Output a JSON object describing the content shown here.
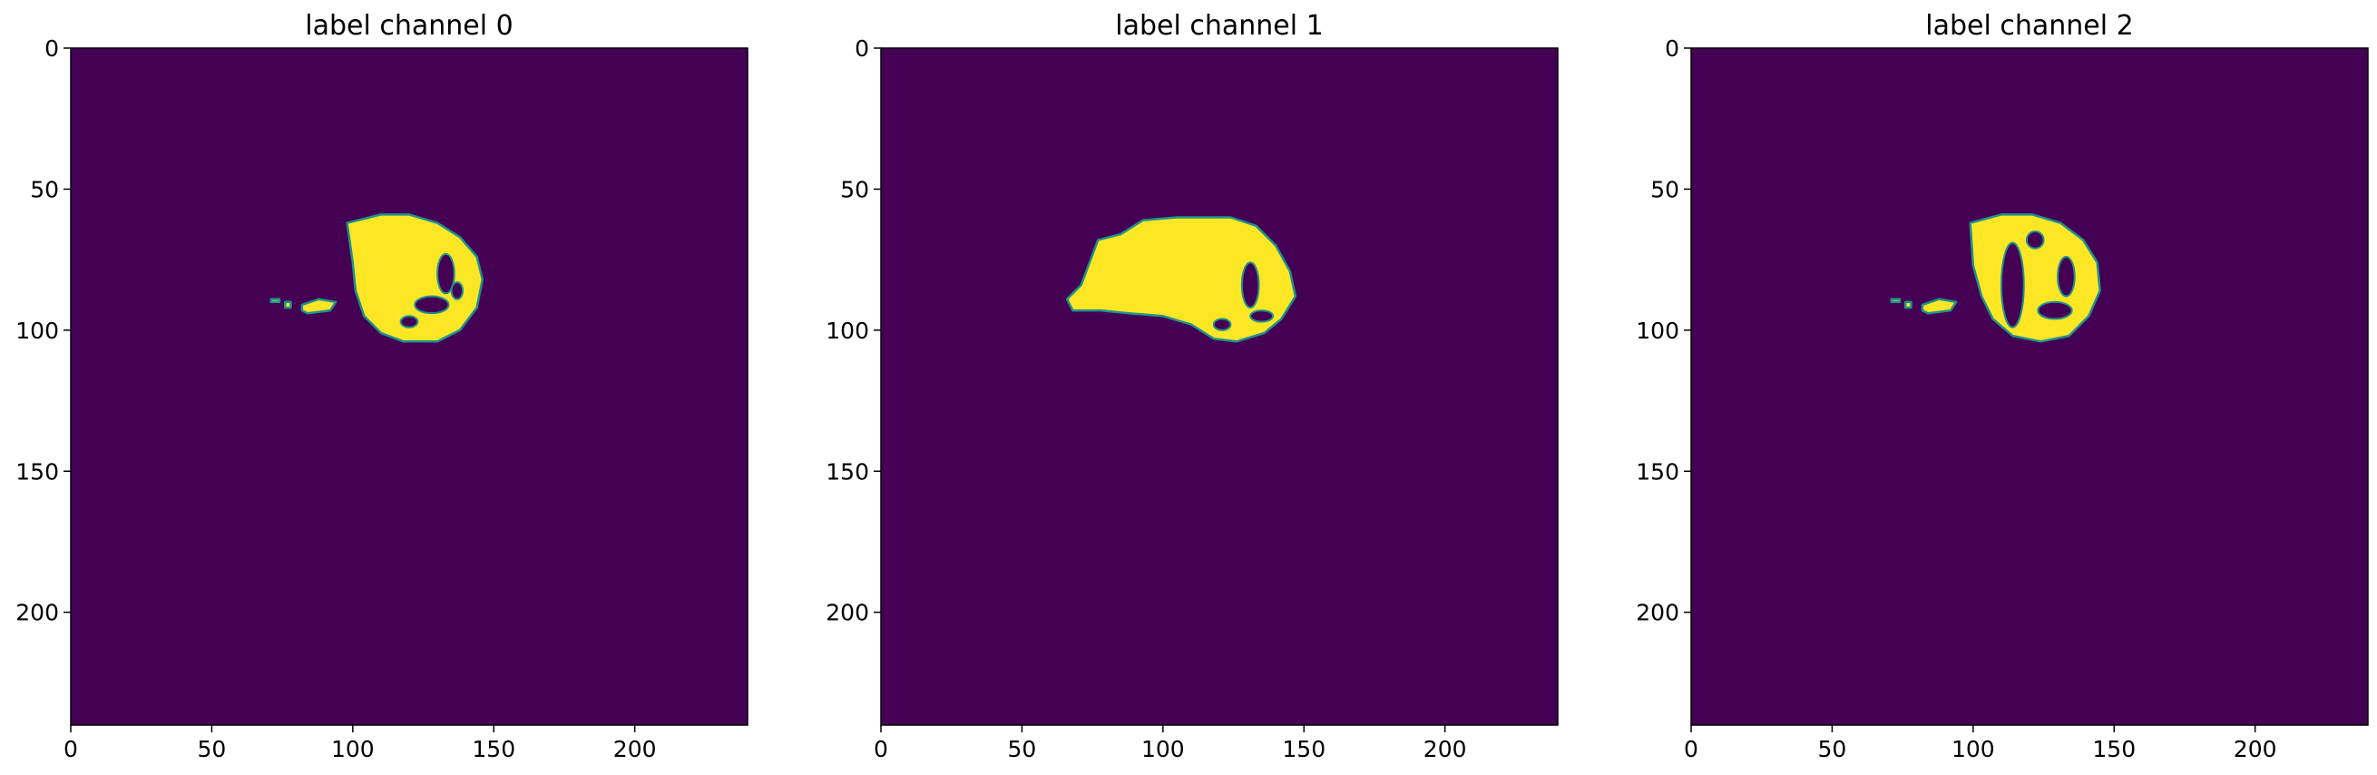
{
  "chart_data": [
    {
      "type": "heatmap",
      "title": "label channel 0",
      "xlim": [
        0,
        240
      ],
      "ylim": [
        240,
        0
      ],
      "xticks": [
        0,
        50,
        100,
        150,
        200
      ],
      "yticks": [
        0,
        50,
        100,
        150,
        200
      ],
      "colors": {
        "background": "#440154",
        "label": "#fde725",
        "edge": "#21918c"
      },
      "regions": [
        {
          "name": "main-blob",
          "points": [
            [
              98,
              62
            ],
            [
              110,
              59
            ],
            [
              120,
              59
            ],
            [
              130,
              62
            ],
            [
              138,
              67
            ],
            [
              144,
              74
            ],
            [
              146,
              82
            ],
            [
              144,
              92
            ],
            [
              138,
              100
            ],
            [
              130,
              104
            ],
            [
              118,
              104
            ],
            [
              110,
              101
            ],
            [
              104,
              95
            ],
            [
              101,
              86
            ],
            [
              100,
              76
            ]
          ],
          "holes": [
            {
              "cx": 133,
              "cy": 80,
              "rx": 3,
              "ry": 7
            },
            {
              "cx": 128,
              "cy": 91,
              "rx": 6,
              "ry": 3
            },
            {
              "cx": 137,
              "cy": 86,
              "rx": 2,
              "ry": 3
            },
            {
              "cx": 120,
              "cy": 97,
              "rx": 3,
              "ry": 2
            }
          ]
        },
        {
          "name": "small-blob",
          "points": [
            [
              82,
              91
            ],
            [
              88,
              89
            ],
            [
              94,
              90
            ],
            [
              92,
              93
            ],
            [
              84,
              94
            ],
            [
              82,
              93
            ]
          ]
        },
        {
          "name": "speck-1",
          "points": [
            [
              71,
              89
            ],
            [
              74,
              89
            ],
            [
              74,
              90
            ],
            [
              71,
              90
            ]
          ]
        },
        {
          "name": "speck-2",
          "points": [
            [
              76,
              90
            ],
            [
              78,
              90
            ],
            [
              78,
              92
            ],
            [
              76,
              92
            ]
          ]
        }
      ]
    },
    {
      "type": "heatmap",
      "title": "label channel 1",
      "xlim": [
        0,
        240
      ],
      "ylim": [
        240,
        0
      ],
      "xticks": [
        0,
        50,
        100,
        150,
        200
      ],
      "yticks": [
        0,
        50,
        100,
        150,
        200
      ],
      "colors": {
        "background": "#440154",
        "label": "#fde725",
        "edge": "#21918c"
      },
      "regions": [
        {
          "name": "main-blob",
          "points": [
            [
              77,
              68
            ],
            [
              85,
              66
            ],
            [
              93,
              61
            ],
            [
              105,
              60
            ],
            [
              116,
              60
            ],
            [
              124,
              60
            ],
            [
              133,
              63
            ],
            [
              140,
              70
            ],
            [
              145,
              79
            ],
            [
              147,
              88
            ],
            [
              142,
              96
            ],
            [
              136,
              101
            ],
            [
              126,
              104
            ],
            [
              118,
              103
            ],
            [
              110,
              98
            ],
            [
              100,
              95
            ],
            [
              88,
              94
            ],
            [
              78,
              93
            ],
            [
              68,
              93
            ],
            [
              66,
              89
            ],
            [
              71,
              84
            ],
            [
              74,
              76
            ]
          ],
          "holes": [
            {
              "cx": 131,
              "cy": 84,
              "rx": 3,
              "ry": 8
            },
            {
              "cx": 135,
              "cy": 95,
              "rx": 4,
              "ry": 2
            },
            {
              "cx": 121,
              "cy": 98,
              "rx": 3,
              "ry": 2
            }
          ]
        }
      ]
    },
    {
      "type": "heatmap",
      "title": "label channel 2",
      "xlim": [
        0,
        240
      ],
      "ylim": [
        240,
        0
      ],
      "xticks": [
        0,
        50,
        100,
        150,
        200
      ],
      "yticks": [
        0,
        50,
        100,
        150,
        200
      ],
      "colors": {
        "background": "#440154",
        "label": "#fde725",
        "edge": "#21918c"
      },
      "regions": [
        {
          "name": "ring-blob",
          "points": [
            [
              99,
              62
            ],
            [
              110,
              59
            ],
            [
              121,
              59
            ],
            [
              131,
              62
            ],
            [
              139,
              68
            ],
            [
              144,
              76
            ],
            [
              145,
              86
            ],
            [
              141,
              95
            ],
            [
              134,
              102
            ],
            [
              124,
              104
            ],
            [
              114,
              102
            ],
            [
              107,
              96
            ],
            [
              103,
              88
            ],
            [
              100,
              77
            ]
          ],
          "holes": [
            {
              "cx": 114,
              "cy": 84,
              "rx": 4,
              "ry": 15
            },
            {
              "cx": 133,
              "cy": 81,
              "rx": 3,
              "ry": 7
            },
            {
              "cx": 129,
              "cy": 93,
              "rx": 6,
              "ry": 3
            },
            {
              "cx": 122,
              "cy": 68,
              "rx": 3,
              "ry": 3
            }
          ]
        },
        {
          "name": "small-blob",
          "points": [
            [
              82,
              91
            ],
            [
              88,
              89
            ],
            [
              94,
              90
            ],
            [
              92,
              93
            ],
            [
              84,
              94
            ],
            [
              82,
              93
            ]
          ]
        },
        {
          "name": "speck-1",
          "points": [
            [
              71,
              89
            ],
            [
              74,
              89
            ],
            [
              74,
              90
            ],
            [
              71,
              90
            ]
          ]
        },
        {
          "name": "speck-2",
          "points": [
            [
              76,
              90
            ],
            [
              78,
              90
            ],
            [
              78,
              92
            ],
            [
              76,
              92
            ]
          ]
        }
      ]
    }
  ]
}
